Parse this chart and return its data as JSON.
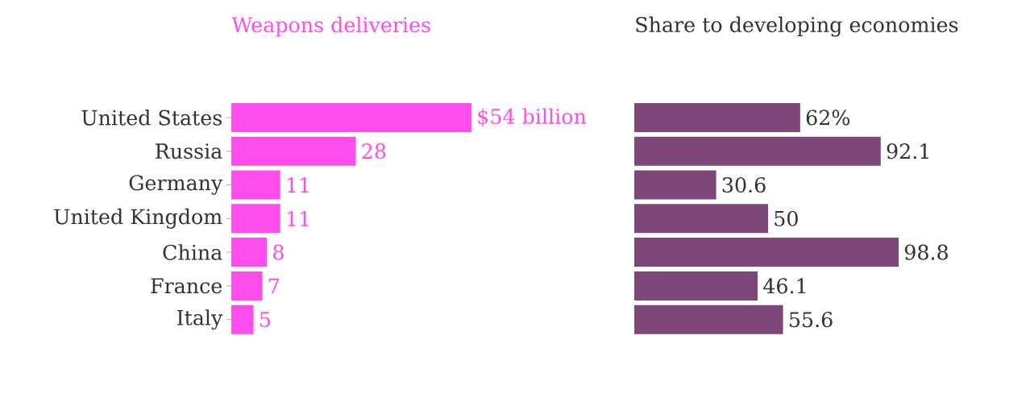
{
  "chart_data": [
    {
      "type": "bar",
      "orientation": "horizontal",
      "title": "Weapons deliveries",
      "categories": [
        "United States",
        "Russia",
        "Germany",
        "United Kingdom",
        "China",
        "France",
        "Italy"
      ],
      "values": [
        54,
        28,
        11,
        11,
        8,
        7,
        5
      ],
      "color": "#ff4cec",
      "value_labels": [
        "$54 billion",
        "28",
        "11",
        "11",
        "8",
        "7",
        "5"
      ],
      "tick_labels": "y"
    },
    {
      "type": "bar",
      "orientation": "horizontal",
      "title": "Share to developing economies",
      "categories": [
        null,
        null,
        null,
        null,
        null,
        null,
        null
      ],
      "values": [
        62,
        92.1,
        30.6,
        50,
        98.8,
        46.1,
        55.6
      ],
      "color": "#7e4779",
      "value_labels": [
        "62%",
        "92.1",
        "30.6",
        "50",
        "98.8",
        "46.1",
        "55.6"
      ],
      "tick_labels": false
    }
  ]
}
